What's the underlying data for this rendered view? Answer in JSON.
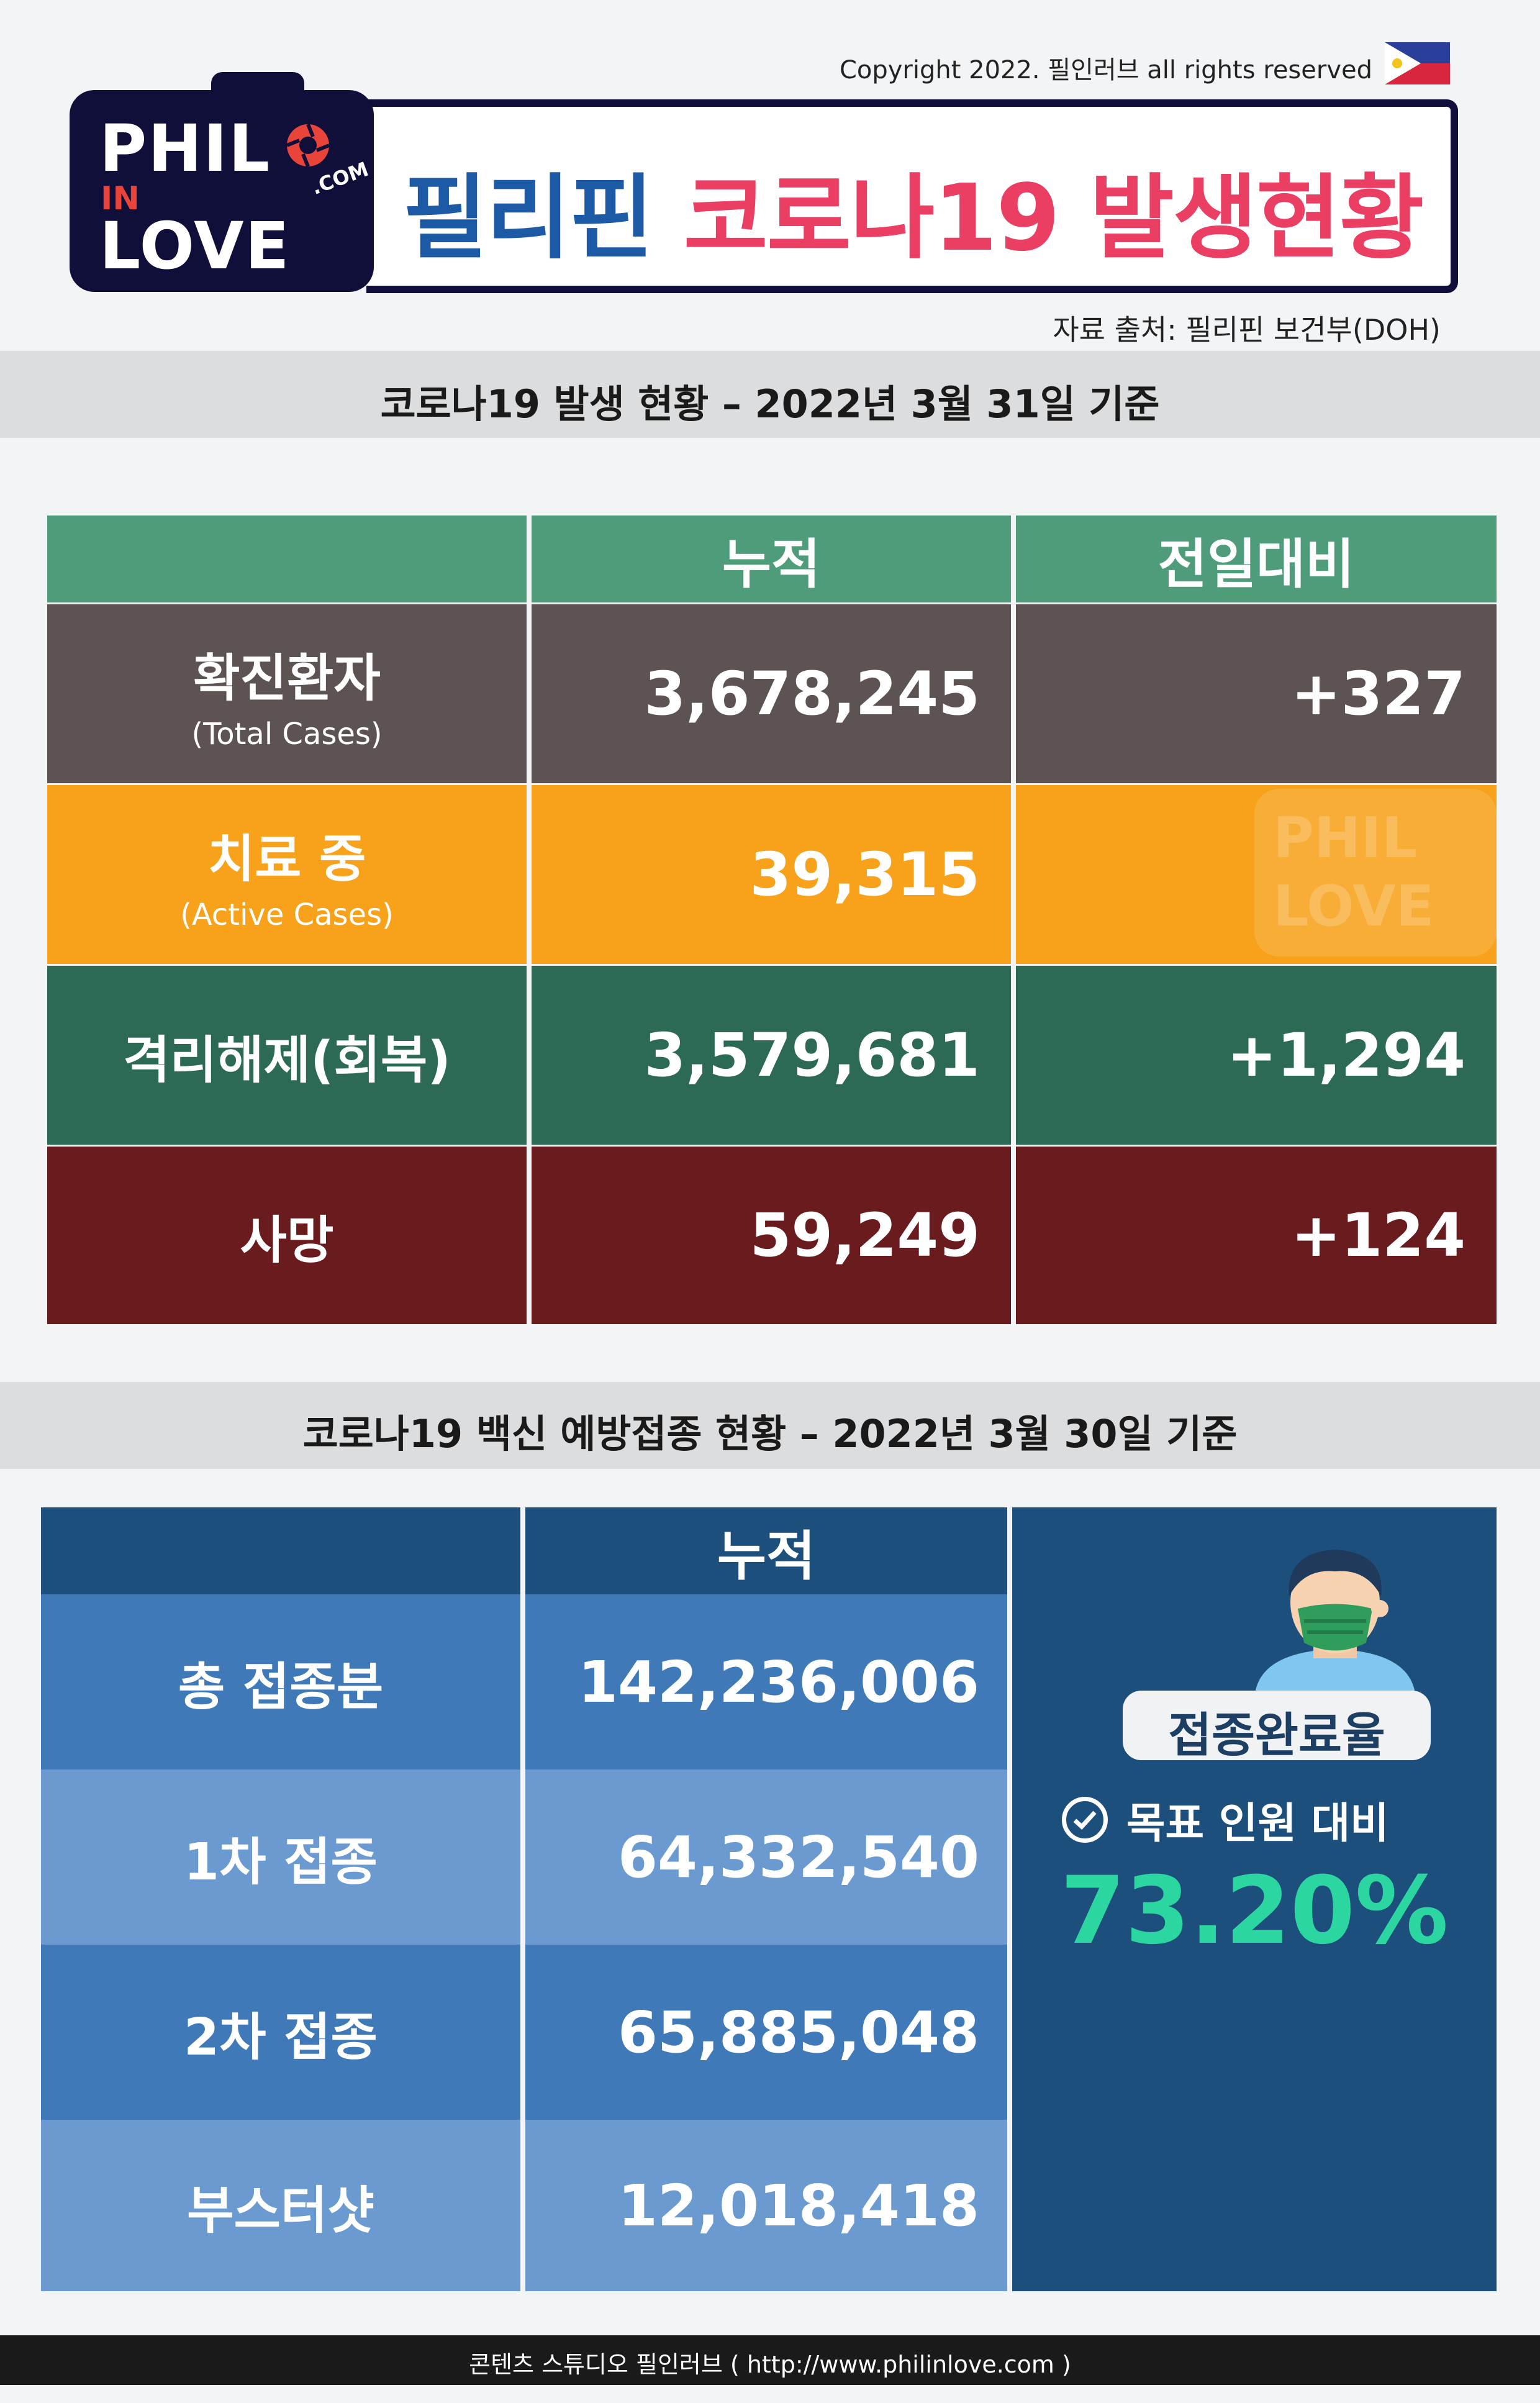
{
  "header": {
    "copyright": "Copyright 2022. 필인러브 all rights reserved",
    "logo": {
      "line1": "PHIL",
      "line2": "IN",
      "line3": "LOVE",
      "com": ".COM"
    },
    "title_part1": "필리핀",
    "title_part2": "코로나19 발생현황",
    "source": "자료 출처: 필리핀 보건부(DOH)"
  },
  "cases_section": {
    "heading": "코로나19 발생 현황 – 2022년 3월 31일 기준",
    "columns": [
      "누적",
      "전일대비"
    ],
    "rows": [
      {
        "label": "확진환자",
        "sublabel": "(Total Cases)",
        "total": "3,678,245",
        "change": "+327"
      },
      {
        "label": "치료 중",
        "sublabel": "(Active Cases)",
        "total": "39,315",
        "change": ""
      },
      {
        "label": "격리해제(회복)",
        "sublabel": "",
        "total": "3,579,681",
        "change": "+1,294"
      },
      {
        "label": "사망",
        "sublabel": "",
        "total": "59,249",
        "change": "+124"
      }
    ]
  },
  "vaccine_section": {
    "heading": "코로나19 백신 예방접종 현황 – 2022년 3월 30일 기준",
    "column": "누적",
    "rows": [
      {
        "label": "총 접종분",
        "value": "142,236,006"
      },
      {
        "label": "1차 접종",
        "value": "64,332,540"
      },
      {
        "label": "2차 접종",
        "value": "65,885,048"
      },
      {
        "label": "부스터샷",
        "value": "12,018,418"
      }
    ],
    "badge": "접종완료율",
    "goal_label": "목표 인원 대비",
    "goal_value": "73.20%"
  },
  "footer": {
    "text": "콘텐츠 스튜디오 필인러브 ( http://www.philinlove.com )"
  },
  "colors": {
    "title_blue": "#1d5aa6",
    "title_pink": "#ea3f63",
    "brown": "#5e5353",
    "orange": "#f8a21b",
    "green": "#2c6a56",
    "dark_red": "#6a1b1e",
    "vaccine_navy": "#1d4f7d",
    "vaccine_mid": "#3f79b8",
    "vaccine_light": "#6a9ad0",
    "accent_green": "#2bd6a0"
  }
}
